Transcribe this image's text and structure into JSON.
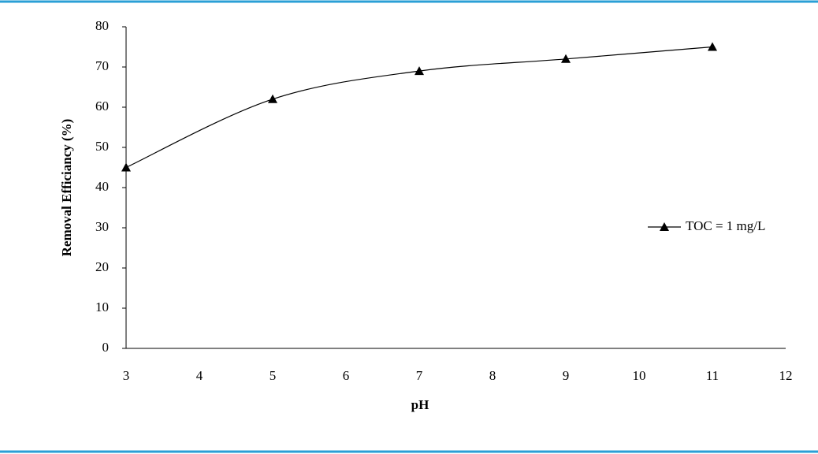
{
  "chart_data": {
    "type": "line",
    "x_label": "pH",
    "y_label": "Removal Efficiancy (%)",
    "x": [
      3,
      5,
      7,
      9,
      11
    ],
    "series": [
      {
        "name": "TOC = 1 mg/L",
        "color": "#000000",
        "values": [
          45,
          62,
          69,
          72,
          75
        ]
      }
    ],
    "xlim": [
      3,
      12
    ],
    "xticks": [
      3,
      4,
      5,
      6,
      7,
      8,
      9,
      10,
      11,
      12
    ],
    "ylim": [
      0,
      80
    ],
    "yticks": [
      0,
      10,
      20,
      30,
      40,
      50,
      60,
      70,
      80
    ],
    "grid": false,
    "smooth": true,
    "marker": "triangle",
    "legend": "right"
  }
}
